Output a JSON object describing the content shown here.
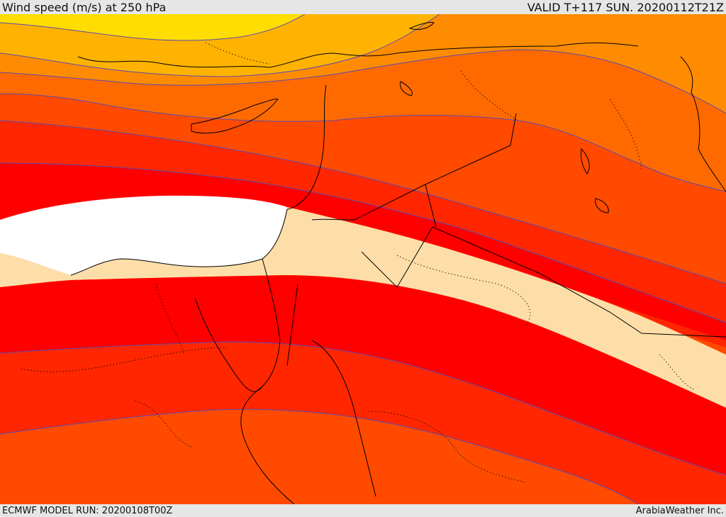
{
  "header": {
    "title": "Wind speed (m/s) at 250 hPa",
    "valid": "VALID T+117 SUN. 20200112T21Z"
  },
  "footer": {
    "model_run": "ECMWF MODEL RUN: 20200108T00Z",
    "credit": "ArabiaWeather Inc."
  },
  "colors": {
    "band_yellow": "#ffdd00",
    "band_amber": "#ffb300",
    "band_orange": "#ff8c00",
    "band_dark_orange": "#ff6a00",
    "band_red_orange": "#ff4a00",
    "band_red": "#ff2600",
    "band_core_red": "#ff0000",
    "jet_max": "#ffffff",
    "weak_flow": "#fddea8",
    "contour": "#5a4ab0",
    "coast": "#000000"
  }
}
